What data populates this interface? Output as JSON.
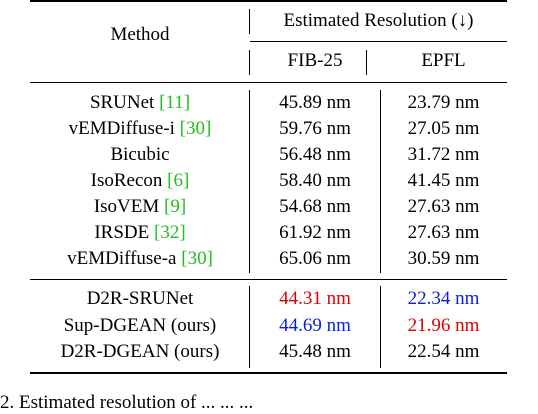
{
  "header": {
    "method": "Method",
    "group": "Estimated Resolution (↓)",
    "col1": "FIB-25",
    "col2": "EPFL"
  },
  "rows_baselines": [
    {
      "name": "SRUNet ",
      "ref": "[11]",
      "fib": "45.89 nm",
      "epfl": "23.79 nm"
    },
    {
      "name": "vEMDiffuse-i ",
      "ref": "[30]",
      "fib": "59.76 nm",
      "epfl": "27.05 nm"
    },
    {
      "name": "Bicubic",
      "ref": "",
      "fib": "56.48 nm",
      "epfl": "31.72 nm"
    },
    {
      "name": "IsoRecon ",
      "ref": "[6]",
      "fib": "58.40 nm",
      "epfl": "41.45 nm"
    },
    {
      "name": "IsoVEM ",
      "ref": "[9]",
      "fib": "54.68 nm",
      "epfl": "27.63 nm"
    },
    {
      "name": "IRSDE ",
      "ref": "[32]",
      "fib": "61.92 nm",
      "epfl": "27.63 nm"
    },
    {
      "name": "vEMDiffuse-a ",
      "ref": "[30]",
      "fib": "65.06 nm",
      "epfl": "30.59 nm"
    }
  ],
  "rows_ours": [
    {
      "name": "D2R-SRUNet",
      "fib": "44.31 nm",
      "fib_color": "red",
      "epfl": "22.34 nm",
      "epfl_color": "blue"
    },
    {
      "name": "Sup-DGEAN (ours)",
      "fib": "44.69 nm",
      "fib_color": "blue",
      "epfl": "21.96 nm",
      "epfl_color": "red"
    },
    {
      "name": "D2R-DGEAN (ours)",
      "fib": "45.48 nm",
      "fib_color": "",
      "epfl": "22.54 nm",
      "epfl_color": ""
    }
  ],
  "caption_fragment": "2. Estimated resolution of ... ... ..."
}
